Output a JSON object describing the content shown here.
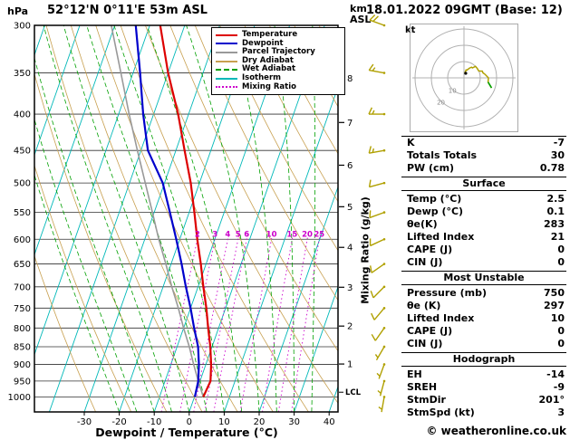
{
  "header": {
    "pressure_unit": "hPa",
    "station": "52°12'N 0°11'E 53m ASL",
    "datetime": "18.01.2022 09GMT (Base: 12)"
  },
  "axes": {
    "altitude_unit": "km\nASL",
    "mixing_ratio_label": "Mixing Ratio (g/kg)",
    "x_label": "Dewpoint / Temperature (°C)"
  },
  "legend": {
    "items": [
      {
        "label": "Temperature",
        "color": "#dd0000",
        "style": "solid"
      },
      {
        "label": "Dewpoint",
        "color": "#0000cc",
        "style": "solid"
      },
      {
        "label": "Parcel Trajectory",
        "color": "#999999",
        "style": "solid"
      },
      {
        "label": "Dry Adiabat",
        "color": "#c8a050",
        "style": "solid"
      },
      {
        "label": "Wet Adiabat",
        "color": "#00a000",
        "style": "dashed"
      },
      {
        "label": "Isotherm",
        "color": "#00b8b8",
        "style": "solid"
      },
      {
        "label": "Mixing Ratio",
        "color": "#cc00cc",
        "style": "dotted"
      }
    ]
  },
  "hodograph": {
    "unit_label": "kt",
    "rings": [
      10,
      20,
      30
    ],
    "ring_labels": [
      10,
      20
    ],
    "storm": {
      "dir_deg": 201,
      "spd_kt": 3
    }
  },
  "panel": {
    "sections": [
      {
        "rows": [
          {
            "label": "K",
            "value": "-7"
          },
          {
            "label": "Totals Totals",
            "value": "30"
          },
          {
            "label": "PW (cm)",
            "value": "0.78"
          }
        ]
      },
      {
        "header": "Surface",
        "rows": [
          {
            "label": "Temp (°C)",
            "value": "2.5"
          },
          {
            "label": "Dewp (°C)",
            "value": "0.1"
          },
          {
            "label": "θe(K)",
            "value": "283"
          },
          {
            "label": "Lifted Index",
            "value": "21"
          },
          {
            "label": "CAPE (J)",
            "value": "0"
          },
          {
            "label": "CIN (J)",
            "value": "0"
          }
        ]
      },
      {
        "header": "Most Unstable",
        "rows": [
          {
            "label": "Pressure (mb)",
            "value": "750"
          },
          {
            "label": "θe (K)",
            "value": "297"
          },
          {
            "label": "Lifted Index",
            "value": "10"
          },
          {
            "label": "CAPE (J)",
            "value": "0"
          },
          {
            "label": "CIN (J)",
            "value": "0"
          }
        ]
      },
      {
        "header": "Hodograph",
        "rows": [
          {
            "label": "EH",
            "value": "-14"
          },
          {
            "label": "SREH",
            "value": "-9"
          },
          {
            "label": "StmDir",
            "value": "201°"
          },
          {
            "label": "StmSpd (kt)",
            "value": "3"
          }
        ]
      }
    ]
  },
  "footer": {
    "copyright": "© weatheronline.co.uk"
  },
  "chart_data": {
    "type": "skewt-logp",
    "pressure_axis_hpa": [
      300,
      1050
    ],
    "temp_axis_c": [
      -40,
      45
    ],
    "pressure_levels": [
      300,
      350,
      400,
      450,
      500,
      550,
      600,
      650,
      700,
      750,
      800,
      850,
      900,
      950,
      1000
    ],
    "temp_ticks": [
      -30,
      -20,
      -10,
      0,
      10,
      20,
      30,
      40
    ],
    "mixing_ratio_lines": [
      2,
      3,
      4,
      5,
      6,
      10,
      15,
      20,
      25
    ],
    "km_ticks": [
      {
        "km": 1,
        "p": 899
      },
      {
        "km": 2,
        "p": 795
      },
      {
        "km": 3,
        "p": 701
      },
      {
        "km": 4,
        "p": 616
      },
      {
        "km": 5,
        "p": 540
      },
      {
        "km": 6,
        "p": 472
      },
      {
        "km": 7,
        "p": 411
      },
      {
        "km": 8,
        "p": 356
      }
    ],
    "lcl_label": "LCL",
    "lcl_pressure": 985,
    "pressure_hpa": [
      1000,
      950,
      900,
      850,
      800,
      750,
      700,
      650,
      600,
      550,
      500,
      450,
      400,
      350,
      300
    ],
    "temperature_c": [
      2.5,
      3.0,
      1.5,
      -0.5,
      -3.0,
      -5.5,
      -8.5,
      -11.5,
      -15.0,
      -18.5,
      -22.5,
      -27.5,
      -33.0,
      -40.0,
      -47.0
    ],
    "dewpoint_c": [
      0.1,
      -0.5,
      -2.0,
      -4.0,
      -7.0,
      -10.0,
      -13.5,
      -17.0,
      -21.0,
      -25.5,
      -30.5,
      -38.0,
      -43.0,
      -48.0,
      -54.0
    ],
    "parcel_c": [
      2.5,
      -0.5,
      -3.5,
      -6.5,
      -10.0,
      -13.5,
      -17.5,
      -21.5,
      -26.0,
      -30.5,
      -35.5,
      -41.0,
      -47.0,
      -53.5,
      -61.0
    ],
    "wind_barbs": [
      {
        "p": 1000,
        "dir_deg": 190,
        "spd_kt": 3
      },
      {
        "p": 950,
        "dir_deg": 195,
        "spd_kt": 5
      },
      {
        "p": 900,
        "dir_deg": 200,
        "spd_kt": 5
      },
      {
        "p": 850,
        "dir_deg": 210,
        "spd_kt": 7
      },
      {
        "p": 800,
        "dir_deg": 215,
        "spd_kt": 8
      },
      {
        "p": 750,
        "dir_deg": 220,
        "spd_kt": 8
      },
      {
        "p": 700,
        "dir_deg": 225,
        "spd_kt": 10
      },
      {
        "p": 650,
        "dir_deg": 235,
        "spd_kt": 10
      },
      {
        "p": 600,
        "dir_deg": 245,
        "spd_kt": 10
      },
      {
        "p": 550,
        "dir_deg": 250,
        "spd_kt": 12
      },
      {
        "p": 500,
        "dir_deg": 255,
        "spd_kt": 12
      },
      {
        "p": 450,
        "dir_deg": 260,
        "spd_kt": 13
      },
      {
        "p": 400,
        "dir_deg": 270,
        "spd_kt": 15
      },
      {
        "p": 350,
        "dir_deg": 280,
        "spd_kt": 15
      },
      {
        "p": 300,
        "dir_deg": 290,
        "spd_kt": 18
      }
    ],
    "colors": {
      "temperature": "#dd0000",
      "dewpoint": "#0000cc",
      "parcel": "#999999",
      "dry_adiabat": "#c8a050",
      "wet_adiabat": "#00a000",
      "isotherm": "#00b8b8",
      "mixing_ratio": "#cc00cc",
      "wind_barb": "#b0a000",
      "grid": "#303030"
    }
  }
}
